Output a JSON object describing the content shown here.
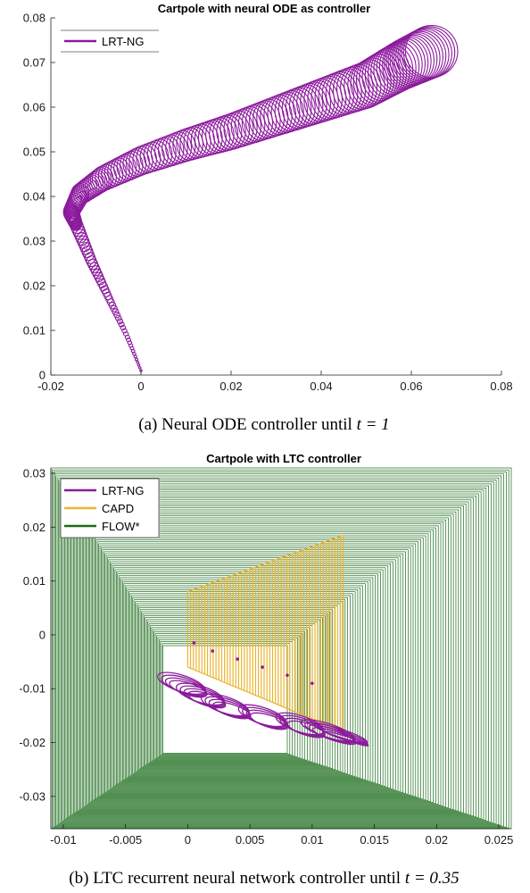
{
  "chart_data": [
    {
      "type": "line",
      "title": "Cartpole with neural ODE as controller",
      "caption_text": "(a) Neural ODE controller until ",
      "caption_math": "t = 1",
      "xlim": [
        -0.02,
        0.08
      ],
      "ylim": [
        0,
        0.08
      ],
      "x_ticks": [
        "-0.02",
        "0",
        "0.02",
        "0.04",
        "0.06",
        "0.08"
      ],
      "y_ticks": [
        "0",
        "0.01",
        "0.02",
        "0.03",
        "0.04",
        "0.05",
        "0.06",
        "0.07",
        "0.08"
      ],
      "grid": false,
      "legend_position": "top-left",
      "series": [
        {
          "name": "LRT-NG",
          "color": "#8b1a9c",
          "marker": "ellipse",
          "points": [
            [
              0.0,
              0.001
            ],
            [
              -0.003,
              0.0085
            ],
            [
              -0.007,
              0.017
            ],
            [
              -0.011,
              0.0255
            ],
            [
              -0.0145,
              0.034
            ],
            [
              -0.0155,
              0.0365
            ],
            [
              -0.0135,
              0.0405
            ],
            [
              -0.0085,
              0.044
            ],
            [
              0.0,
              0.048
            ],
            [
              0.01,
              0.0515
            ],
            [
              0.02,
              0.0545
            ],
            [
              0.03,
              0.058
            ],
            [
              0.04,
              0.0615
            ],
            [
              0.05,
              0.065
            ],
            [
              0.058,
              0.0695
            ],
            [
              0.0645,
              0.0725
            ]
          ],
          "ring_x_radius": [
            0.0002,
            0.0005,
            0.0008,
            0.0011,
            0.0014,
            0.0017,
            0.002,
            0.0023,
            0.0026,
            0.0029,
            0.0032,
            0.0035,
            0.0038,
            0.0041,
            0.0044,
            0.0058
          ],
          "ring_y_radius": [
            0.0002,
            0.0004,
            0.0008,
            0.0012,
            0.0016,
            0.002,
            0.0024,
            0.0028,
            0.0032,
            0.0036,
            0.004,
            0.0044,
            0.0048,
            0.0052,
            0.0056,
            0.0058
          ]
        }
      ]
    },
    {
      "type": "line",
      "title": "Cartpole with LTC controller",
      "caption_text": "(b) LTC recurrent neural network controller until ",
      "caption_math": "t = 0.35",
      "xlim": [
        -0.011,
        0.026
      ],
      "ylim": [
        -0.036,
        0.031
      ],
      "x_ticks": [
        "-0.01",
        "-0.005",
        "0",
        "0.005",
        "0.01",
        "0.015",
        "0.02",
        "0.025"
      ],
      "y_ticks": [
        "-0.03",
        "-0.02",
        "-0.01",
        "0",
        "0.01",
        "0.02",
        "0.03"
      ],
      "grid": false,
      "legend_position": "top-left",
      "series": [
        {
          "name": "LRT-NG",
          "color": "#8b1a9c",
          "loop_x": [
            [
              -0.0015,
              0.0005
            ],
            [
              0.0,
              0.002
            ],
            [
              0.002,
              0.004
            ],
            [
              0.005,
              0.007
            ],
            [
              0.008,
              0.01
            ],
            [
              0.01,
              0.0125
            ],
            [
              0.011,
              0.0135
            ]
          ],
          "loop_y": [
            [
              -0.0075,
              -0.0105
            ],
            [
              -0.0095,
              -0.0125
            ],
            [
              -0.0115,
              -0.0145
            ],
            [
              -0.0135,
              -0.0165
            ],
            [
              -0.015,
              -0.018
            ],
            [
              -0.0165,
              -0.019
            ],
            [
              -0.0175,
              -0.019
            ]
          ],
          "dots": [
            [
              0.0005,
              -0.0015
            ],
            [
              0.002,
              -0.003
            ],
            [
              0.004,
              -0.0045
            ],
            [
              0.006,
              -0.006
            ],
            [
              0.008,
              -0.0075
            ],
            [
              0.01,
              -0.009
            ]
          ]
        },
        {
          "name": "CAPD",
          "color": "#eab530",
          "x_from": 0.0,
          "x_to": 0.0125,
          "low_from": -0.006,
          "low_to": -0.018,
          "high_from": 0.008,
          "high_to": 0.0185,
          "line_count": 56
        },
        {
          "name": "FLOW*",
          "color": "#1a6b1a",
          "x_left_from": -0.002,
          "x_left_to": -0.011,
          "x_right_from": 0.008,
          "x_right_to": 0.026,
          "y_low_from": -0.022,
          "y_low_to": -0.036,
          "y_high_from": -0.002,
          "y_high_to": 0.031,
          "line_count": 90
        }
      ]
    }
  ]
}
